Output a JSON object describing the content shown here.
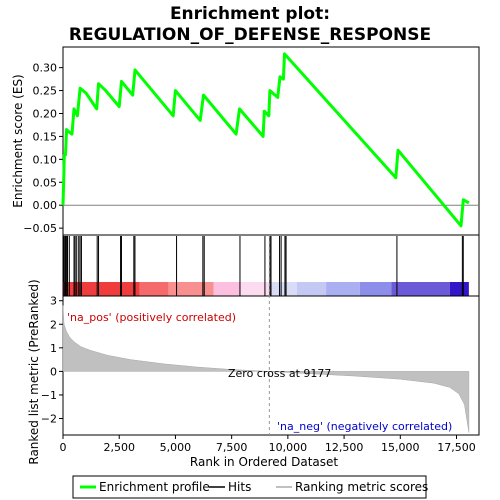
{
  "title_line1": "Enrichment plot:",
  "title_line2": "REGULATION_OF_DEFENSE_RESPONSE",
  "chart_data": {
    "type": "line",
    "top_panel": {
      "ylabel": "Enrichment score (ES)",
      "ylim": [
        -0.065,
        0.345
      ],
      "yticks": [
        -0.05,
        0.0,
        0.05,
        0.1,
        0.15,
        0.2,
        0.25,
        0.3
      ],
      "ytick_labels": [
        "−0.05",
        "0.00",
        "0.05",
        "0.10",
        "0.15",
        "0.20",
        "0.25",
        "0.30"
      ],
      "series": [
        {
          "name": "Enrichment profile",
          "color": "#00ff00",
          "x": [
            0,
            20,
            40,
            60,
            110,
            160,
            260,
            400,
            490,
            640,
            760,
            1020,
            1500,
            1580,
            1900,
            2500,
            2600,
            2850,
            3100,
            3200,
            4900,
            5000,
            6100,
            6250,
            7700,
            7850,
            8900,
            8950,
            9150,
            9200,
            9550,
            9650,
            9800,
            9850,
            14800,
            14900,
            17700,
            17800,
            18050
          ],
          "y": [
            0.0,
            0.03,
            0.07,
            0.11,
            0.11,
            0.165,
            0.16,
            0.155,
            0.21,
            0.195,
            0.255,
            0.245,
            0.21,
            0.265,
            0.25,
            0.215,
            0.27,
            0.255,
            0.24,
            0.295,
            0.195,
            0.25,
            0.185,
            0.24,
            0.155,
            0.21,
            0.15,
            0.205,
            0.195,
            0.25,
            0.235,
            0.28,
            0.275,
            0.33,
            0.06,
            0.12,
            -0.045,
            0.012,
            0.005
          ]
        }
      ]
    },
    "hits": [
      30,
      60,
      110,
      160,
      200,
      280,
      490,
      540,
      610,
      700,
      760,
      820,
      1520,
      1580,
      2560,
      2600,
      3150,
      3200,
      5050,
      6220,
      6280,
      7870,
      8980,
      9200,
      9250,
      9630,
      9700,
      9870,
      9920,
      14850,
      17760,
      17800
    ],
    "heatmap_bands": [
      {
        "from": 0,
        "to": 3400,
        "color": "#ef3d3d"
      },
      {
        "from": 3400,
        "to": 4700,
        "color": "#f56a6a"
      },
      {
        "from": 4700,
        "to": 6700,
        "color": "#f99090"
      },
      {
        "from": 6700,
        "to": 7900,
        "color": "#fbc0e0"
      },
      {
        "from": 7900,
        "to": 9177,
        "color": "#fcdaf0"
      },
      {
        "from": 9177,
        "to": 10400,
        "color": "#d8dcf6"
      },
      {
        "from": 10400,
        "to": 11700,
        "color": "#c4c9f3"
      },
      {
        "from": 11700,
        "to": 13200,
        "color": "#a9aff0"
      },
      {
        "from": 13200,
        "to": 14600,
        "color": "#8d8ee9"
      },
      {
        "from": 14600,
        "to": 17200,
        "color": "#6a5ad8"
      },
      {
        "from": 17200,
        "to": 18050,
        "color": "#3515c8"
      }
    ],
    "bottom_panel": {
      "ylabel": "Ranked list metric (PreRanked)",
      "ylim": [
        -2.7,
        3.2
      ],
      "yticks": [
        3,
        2,
        1,
        0,
        -1,
        -2
      ],
      "ytick_labels": [
        "3",
        "2",
        "1",
        "0",
        "−1",
        "−2"
      ],
      "series": [
        {
          "name": "Ranking metric scores",
          "color": "#c0c0c0",
          "x": [
            0,
            50,
            150,
            300,
            500,
            800,
            1200,
            2000,
            3000,
            4500,
            6000,
            7500,
            9177,
            11000,
            13000,
            15000,
            16500,
            17200,
            17600,
            17850,
            18050
          ],
          "y": [
            2.8,
            2.0,
            1.7,
            1.45,
            1.25,
            1.05,
            0.9,
            0.68,
            0.5,
            0.32,
            0.18,
            0.08,
            0.0,
            -0.1,
            -0.2,
            -0.33,
            -0.5,
            -0.68,
            -0.95,
            -1.4,
            -2.6
          ]
        }
      ],
      "zero_cross": 9177
    },
    "xlabel": "Rank in Ordered Dataset",
    "xlim": [
      0,
      18500
    ],
    "xticks": [
      0,
      2500,
      5000,
      7500,
      10000,
      12500,
      15000,
      17500
    ],
    "xtick_labels": [
      "0",
      "2,500",
      "5,000",
      "7,500",
      "10,000",
      "12,500",
      "15,000",
      "17,500"
    ]
  },
  "annotations": {
    "na_pos": "'na_pos' (positively correlated)",
    "na_neg": "'na_neg' (negatively correlated)",
    "zero_cross": "Zero cross at 9177",
    "pos_color": "#cc0000",
    "neg_color": "#0000cc"
  },
  "legend": {
    "items": [
      {
        "label": "Enrichment profile",
        "color": "#00ff00"
      },
      {
        "label": "Hits",
        "color": "#000000"
      },
      {
        "label": "Ranking metric scores",
        "color": "#c0c0c0"
      }
    ]
  }
}
